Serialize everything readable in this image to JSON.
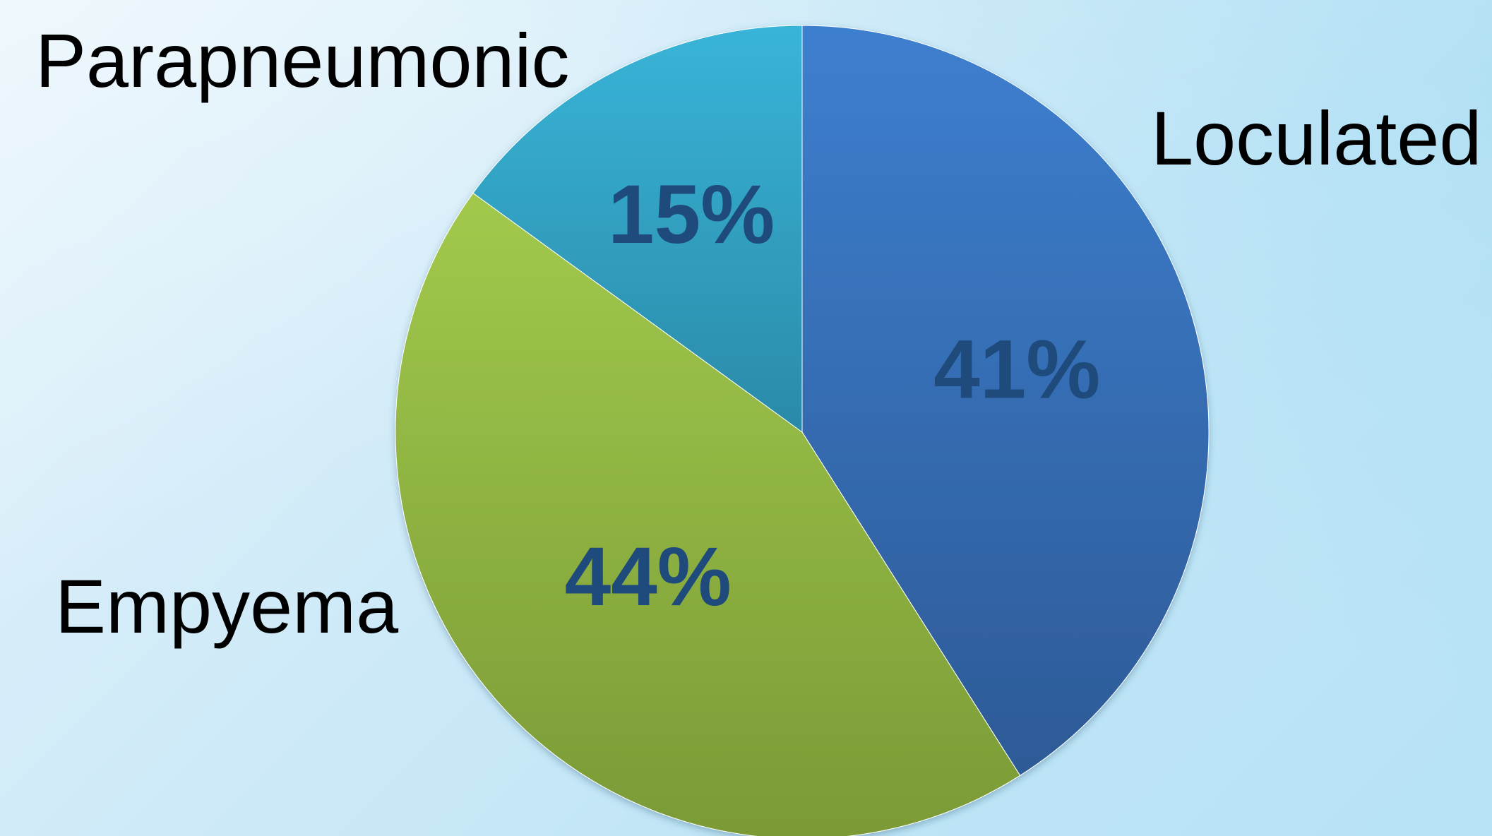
{
  "chart_data": {
    "type": "pie",
    "start": "top",
    "direction": "clockwise",
    "slices": [
      {
        "label": "Loculated",
        "value": 41,
        "value_label": "41%",
        "color_top": "#3d7fcf",
        "color_bottom": "#2d5a96"
      },
      {
        "label": "Empyema",
        "value": 44,
        "value_label": "44%",
        "color_top": "#a2c94c",
        "color_bottom": "#7a9a36"
      },
      {
        "label": "Parapneumonic",
        "value": 15,
        "value_label": "15%",
        "color_top": "#38b4d8",
        "color_bottom": "#2b8aa8"
      }
    ],
    "value_label_color": "#1f4a7c",
    "legend": "none"
  }
}
